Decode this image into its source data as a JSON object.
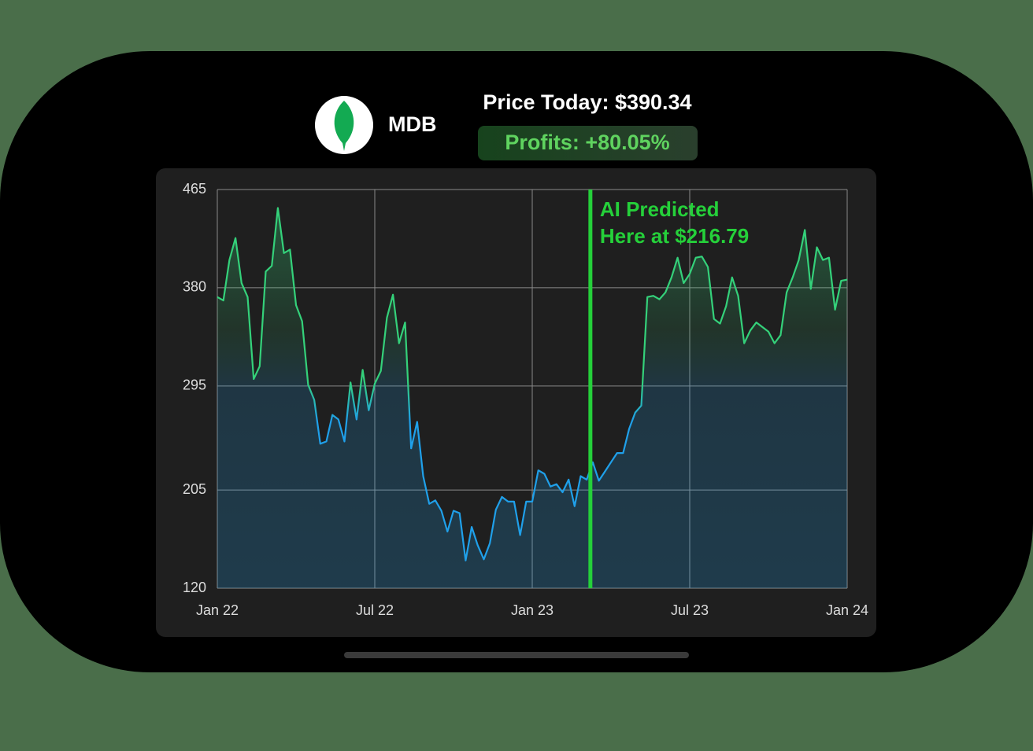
{
  "header": {
    "symbol": "MDB",
    "price": "Price Today: $390.34",
    "profits": "Profits: +80.05%"
  },
  "chart_data": {
    "type": "line",
    "values": [
      372,
      369,
      404,
      423,
      384,
      372,
      301,
      312,
      394,
      399,
      449,
      410,
      413,
      365,
      351,
      296,
      283,
      245,
      247,
      270,
      266,
      247,
      298,
      266,
      309,
      274,
      297,
      308,
      354,
      374,
      332,
      350,
      241,
      264,
      217,
      193,
      196,
      187,
      169,
      187,
      185,
      144,
      173,
      157,
      145,
      159,
      188,
      199,
      195,
      195,
      166,
      195,
      195,
      222,
      219,
      208,
      210,
      203,
      214,
      191,
      217,
      214,
      229,
      213,
      221,
      229,
      237,
      237,
      258,
      272,
      278,
      372,
      373,
      370,
      376,
      389,
      406,
      384,
      392,
      406,
      407,
      398,
      353,
      349,
      364,
      389,
      373,
      332,
      343,
      350,
      346,
      342,
      332,
      339,
      376,
      389,
      404,
      430,
      379,
      415,
      404,
      406,
      361,
      386,
      387
    ],
    "xlim": [
      0,
      104
    ],
    "xticks": [
      {
        "value": 0,
        "label": "Jan 22"
      },
      {
        "value": 26,
        "label": "Jul 22"
      },
      {
        "value": 52,
        "label": "Jan 23"
      },
      {
        "value": 78,
        "label": "Jul 23"
      },
      {
        "value": 104,
        "label": "Jan 24"
      }
    ],
    "ylim": [
      120,
      465
    ],
    "yticks": [
      120,
      205,
      295,
      380,
      465
    ],
    "grid": true,
    "line_colors": [
      "#34d17a",
      "#1fa0ea"
    ],
    "annotation": {
      "x": 61.6,
      "text": [
        "AI Predicted",
        "Here at $216.79"
      ],
      "color": "#25d03a"
    }
  }
}
